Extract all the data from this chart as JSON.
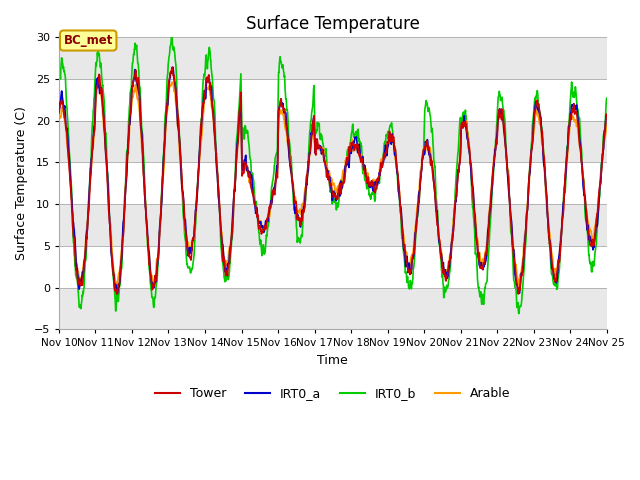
{
  "title": "Surface Temperature",
  "xlabel": "Time",
  "ylabel": "Surface Temperature (C)",
  "ylim": [
    -5,
    30
  ],
  "xlim": [
    0,
    360
  ],
  "annotation": "BC_met",
  "series_colors": {
    "Tower": "#cc0000",
    "IRT0_a": "#0000cc",
    "IRT0_b": "#00cc00",
    "Arable": "#ff9900"
  },
  "grid_color": "#aaaaaa",
  "bg_color": "#ffffff",
  "band_color": "#e8e8e8",
  "xtick_labels": [
    "Nov 10",
    "Nov 11",
    "Nov 12",
    "Nov 13",
    "Nov 14",
    "Nov 15",
    "Nov 16",
    "Nov 17",
    "Nov 18",
    "Nov 19",
    "Nov 20",
    "Nov 21",
    "Nov 22",
    "Nov 23",
    "Nov 24",
    "Nov 25"
  ],
  "xtick_positions": [
    0,
    24,
    48,
    72,
    96,
    120,
    144,
    168,
    192,
    216,
    240,
    264,
    288,
    312,
    336,
    360
  ],
  "yticks": [
    -5,
    0,
    5,
    10,
    15,
    20,
    25,
    30
  ]
}
